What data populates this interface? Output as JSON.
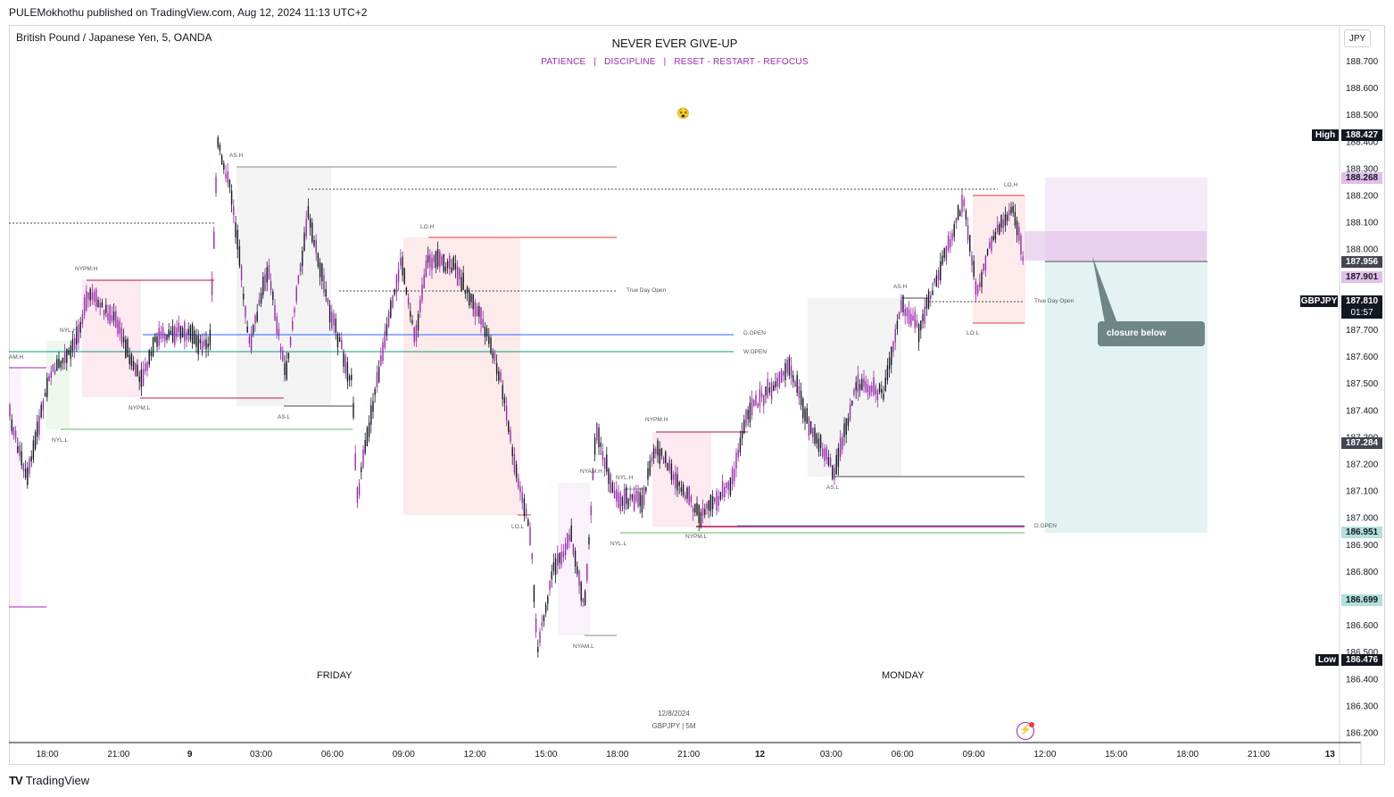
{
  "header": {
    "published": "PULEMokhothu published on TradingView.com, Aug 12, 2024 11:13 UTC+2"
  },
  "symbol": {
    "title": "British Pound / Japanese Yen, 5, OANDA",
    "ticker": "GBPJPY",
    "currency": "JPY"
  },
  "banner": {
    "headline": "NEVER EVER GIVE-UP",
    "subline": "PATIENCE   |   DISCIPLINE   |   RESET - RESTART - REFOCUS"
  },
  "watermark": {
    "date": "12/8/2024",
    "symbol": "GBPJPY | 5M"
  },
  "brand": {
    "name": "TradingView",
    "logo": "TV"
  },
  "day_labels": {
    "friday": "FRIDAY",
    "monday": "MONDAY"
  },
  "annotation": {
    "text": "closure below"
  },
  "price_axis": {
    "ticks": [
      "188.700",
      "188.600",
      "188.500",
      "188.400",
      "188.300",
      "188.200",
      "188.100",
      "188.000",
      "187.900",
      "187.800",
      "187.700",
      "187.600",
      "187.500",
      "187.400",
      "187.300",
      "187.200",
      "187.100",
      "187.000",
      "186.900",
      "186.800",
      "186.700",
      "186.600",
      "186.500",
      "186.400",
      "186.300",
      "186.200"
    ],
    "high_label": "High",
    "high_value": "188.427",
    "low_label": "Low",
    "low_value": "186.476",
    "badge_target": "188.268",
    "badge_entry": "187.956",
    "badge_stop": "187.901",
    "current_ticker": "GBPJPY",
    "current_price": "187.810",
    "countdown": "01:57",
    "badge_mid": "187.284",
    "badge_tp1": "186.951",
    "badge_tp2": "186.699"
  },
  "time_axis": [
    "18:00",
    "21:00",
    "9",
    "03:00",
    "06:00",
    "09:00",
    "12:00",
    "15:00",
    "18:00",
    "21:00",
    "12",
    "03:00",
    "06:00",
    "09:00",
    "12:00",
    "15:00",
    "18:00",
    "21:00",
    "13"
  ],
  "level_labels": {
    "am_h": "AM.H",
    "nyl_h": "NYL.H",
    "nypm_h": "NYPM.H",
    "nyl_l": "NYL.L",
    "nypm_l": "NYPM.L",
    "as_h": "AS.H",
    "as_l": "AS.L",
    "lo_h": "LO.H",
    "lo_l": "LO.L",
    "true_day_open": "True Day Open",
    "d_open": "D.OPEN",
    "w_open": "W.OPEN",
    "nyam_h": "NYAM.H",
    "nyam_l": "NYAM.L",
    "nyl_h2": "NYL.H",
    "nyl_l2": "NYL.L",
    "nypm_h2": "NYPM.H",
    "nypm_l2": "NYPM.L",
    "as_h2": "AS.H",
    "as_l2": "AS.L",
    "lo_h2": "LO.H",
    "lo_l2": "LO.L",
    "true_day_open2": "True Day Open",
    "d_open2": "D.OPEN"
  },
  "colors": {
    "up": "#9c27b0",
    "down": "#131722",
    "accent": "#9c27b0",
    "dopen": "#2962ff",
    "wopen": "#089981"
  },
  "chart_data": {
    "type": "candlestick",
    "title": "British Pound / Japanese Yen, 5, OANDA",
    "ylim": [
      186.17,
      188.8
    ],
    "high": 188.427,
    "low": 186.476,
    "current": 187.81
  }
}
